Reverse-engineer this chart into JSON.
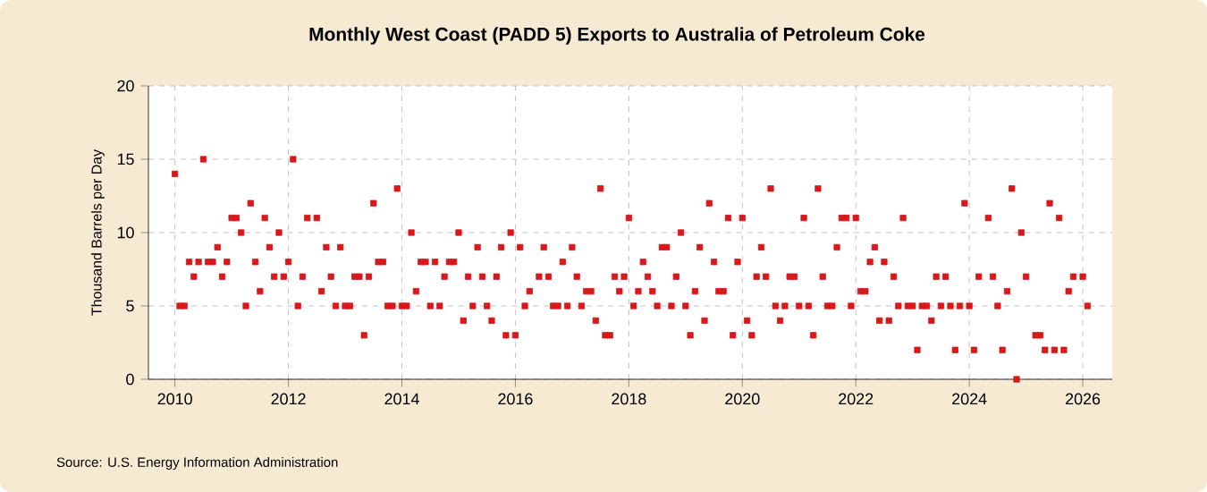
{
  "chart_data": {
    "type": "scatter",
    "title": "Monthly West Coast (PADD 5) Exports to Australia of Petroleum Coke",
    "ylabel": "Thousand Barrels per Day",
    "annotations": [
      "Source: U.S. Energy Information Administration"
    ],
    "x": [
      "2010-01",
      "2010-02",
      "2010-03",
      "2010-04",
      "2010-05",
      "2010-06",
      "2010-07",
      "2010-08",
      "2010-09",
      "2010-10",
      "2010-11",
      "2010-12",
      "2011-01",
      "2011-02",
      "2011-03",
      "2011-04",
      "2011-05",
      "2011-06",
      "2011-07",
      "2011-08",
      "2011-09",
      "2011-10",
      "2011-11",
      "2011-12",
      "2012-01",
      "2012-02",
      "2012-03",
      "2012-04",
      "2012-05",
      "2012-07",
      "2012-08",
      "2012-09",
      "2012-10",
      "2012-11",
      "2012-12",
      "2013-01",
      "2013-02",
      "2013-03",
      "2013-04",
      "2013-05",
      "2013-06",
      "2013-07",
      "2013-08",
      "2013-09",
      "2013-10",
      "2013-11",
      "2013-12",
      "2014-01",
      "2014-02",
      "2014-03",
      "2014-04",
      "2014-05",
      "2014-06",
      "2014-07",
      "2014-08",
      "2014-09",
      "2014-10",
      "2014-11",
      "2014-12",
      "2015-01",
      "2015-02",
      "2015-03",
      "2015-04",
      "2015-05",
      "2015-06",
      "2015-07",
      "2015-08",
      "2015-09",
      "2015-10",
      "2015-11",
      "2015-12",
      "2016-01",
      "2016-02",
      "2016-03",
      "2016-04",
      "2016-06",
      "2016-07",
      "2016-08",
      "2016-09",
      "2016-10",
      "2016-11",
      "2016-12",
      "2017-01",
      "2017-02",
      "2017-03",
      "2017-04",
      "2017-05",
      "2017-06",
      "2017-07",
      "2017-08",
      "2017-09",
      "2017-10",
      "2017-11",
      "2017-12",
      "2018-01",
      "2018-02",
      "2018-03",
      "2018-04",
      "2018-05",
      "2018-06",
      "2018-07",
      "2018-08",
      "2018-09",
      "2018-10",
      "2018-11",
      "2018-12",
      "2019-01",
      "2019-02",
      "2019-03",
      "2019-04",
      "2019-05",
      "2019-06",
      "2019-07",
      "2019-08",
      "2019-09",
      "2019-10",
      "2019-11",
      "2019-12",
      "2020-01",
      "2020-02",
      "2020-03",
      "2020-04",
      "2020-05",
      "2020-06",
      "2020-07",
      "2020-08",
      "2020-09",
      "2020-10",
      "2020-11",
      "2020-12",
      "2021-01",
      "2021-02",
      "2021-03",
      "2021-04",
      "2021-05",
      "2021-06",
      "2021-07",
      "2021-08",
      "2021-09",
      "2021-10",
      "2021-11",
      "2021-12",
      "2022-01",
      "2022-02",
      "2022-03",
      "2022-04",
      "2022-05",
      "2022-06",
      "2022-07",
      "2022-08",
      "2022-09",
      "2022-10",
      "2022-11",
      "2022-12",
      "2023-01",
      "2023-02",
      "2023-03",
      "2023-04",
      "2023-05",
      "2023-06",
      "2023-07",
      "2023-08",
      "2023-09",
      "2023-10",
      "2023-11",
      "2023-12",
      "2024-01",
      "2024-02",
      "2024-03",
      "2024-05",
      "2024-06",
      "2024-07",
      "2024-08",
      "2024-09",
      "2024-10",
      "2024-11",
      "2024-12",
      "2025-01",
      "2025-03",
      "2025-04",
      "2025-05",
      "2025-06",
      "2025-07",
      "2025-08",
      "2025-09",
      "2025-10",
      "2025-11",
      "2026-01",
      "2026-02"
    ],
    "values": [
      14,
      5,
      5,
      8,
      7,
      8,
      15,
      8,
      8,
      9,
      7,
      8,
      11,
      11,
      10,
      5,
      12,
      8,
      6,
      11,
      9,
      7,
      10,
      7,
      8,
      15,
      5,
      7,
      11,
      11,
      6,
      9,
      7,
      5,
      9,
      5,
      5,
      7,
      7,
      3,
      7,
      12,
      8,
      8,
      5,
      5,
      13,
      5,
      5,
      10,
      6,
      8,
      8,
      5,
      8,
      5,
      7,
      8,
      8,
      10,
      4,
      7,
      5,
      9,
      7,
      5,
      4,
      7,
      9,
      3,
      10,
      3,
      9,
      5,
      6,
      7,
      9,
      7,
      5,
      5,
      8,
      5,
      9,
      7,
      5,
      6,
      6,
      4,
      13,
      3,
      3,
      7,
      6,
      7,
      11,
      5,
      6,
      8,
      7,
      6,
      5,
      9,
      9,
      5,
      7,
      10,
      5,
      3,
      6,
      9,
      4,
      12,
      8,
      6,
      6,
      11,
      3,
      8,
      11,
      4,
      3,
      7,
      9,
      7,
      13,
      5,
      4,
      5,
      7,
      7,
      5,
      11,
      5,
      3,
      13,
      7,
      5,
      5,
      9,
      11,
      11,
      5,
      11,
      6,
      6,
      8,
      9,
      4,
      8,
      4,
      7,
      5,
      11,
      5,
      5,
      2,
      5,
      5,
      4,
      7,
      5,
      7,
      5,
      2,
      5,
      12,
      5,
      2,
      7,
      11,
      7,
      5,
      2,
      6,
      13,
      0,
      10,
      7,
      3,
      3,
      2,
      12,
      2,
      11,
      2,
      6,
      7,
      7,
      5
    ],
    "color": "#d7191c",
    "marker": "square",
    "xlim": [
      "2009-07-13",
      "2026-07-08"
    ],
    "xticks": [
      "2010",
      "2012",
      "2014",
      "2016",
      "2018",
      "2020",
      "2022",
      "2024",
      "2026"
    ],
    "ylim": [
      0,
      20
    ],
    "yticks": [
      0,
      5,
      10,
      15,
      20
    ],
    "grid": true
  }
}
